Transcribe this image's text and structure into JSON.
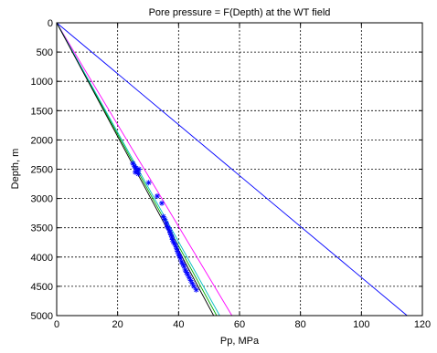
{
  "chart_data": {
    "type": "line",
    "title": "Pore pressure = F(Depth) at the WT field",
    "xlabel": "Pp, MPa",
    "ylabel": "Depth, m",
    "xlim": [
      0,
      120
    ],
    "ylim": [
      0,
      5000
    ],
    "y_reversed": true,
    "grid": true,
    "grid_style": "dotted",
    "xticks": [
      0,
      20,
      40,
      60,
      80,
      100,
      120
    ],
    "yticks": [
      0,
      500,
      1000,
      1500,
      2000,
      2500,
      3000,
      3500,
      4000,
      4500,
      5000
    ],
    "series": [
      {
        "type": "line",
        "color": "#0000ff",
        "x": [
          0,
          115
        ],
        "y": [
          0,
          5000
        ]
      },
      {
        "type": "line",
        "color": "#ff00ff",
        "x": [
          0,
          57.5
        ],
        "y": [
          0,
          5000
        ]
      },
      {
        "type": "line",
        "color": "#00aa00",
        "x": [
          0,
          52.5
        ],
        "y": [
          0,
          5000
        ]
      },
      {
        "type": "line",
        "color": "#00bfbf",
        "x": [
          0,
          53.5
        ],
        "y": [
          0,
          5000
        ]
      },
      {
        "type": "line",
        "color": "#000000",
        "x": [
          0,
          51.5
        ],
        "y": [
          0,
          5000
        ]
      },
      {
        "type": "scatter",
        "marker": "asterisk",
        "color": "#0000ff",
        "x": [
          25.0,
          25.5,
          26.0,
          26.5,
          27.0,
          25.8,
          26.8,
          30.2,
          33.0,
          34.5,
          35.0,
          35.5,
          36.0,
          36.3,
          36.6,
          37.0,
          37.2,
          37.5,
          37.8,
          38.0,
          38.3,
          38.6,
          39.0,
          39.3,
          39.6,
          40.0,
          40.3,
          40.6,
          41.0,
          41.4,
          41.8,
          42.2,
          42.6,
          43.0,
          43.5,
          44.0,
          44.5,
          45.0,
          45.8
        ],
        "y": [
          2400,
          2450,
          2480,
          2520,
          2500,
          2550,
          2580,
          2730,
          2960,
          3080,
          3310,
          3360,
          3420,
          3480,
          3500,
          3540,
          3580,
          3620,
          3660,
          3700,
          3740,
          3760,
          3800,
          3850,
          3900,
          3950,
          3980,
          4020,
          4080,
          4120,
          4160,
          4220,
          4260,
          4300,
          4350,
          4400,
          4450,
          4500,
          4560
        ]
      }
    ]
  }
}
